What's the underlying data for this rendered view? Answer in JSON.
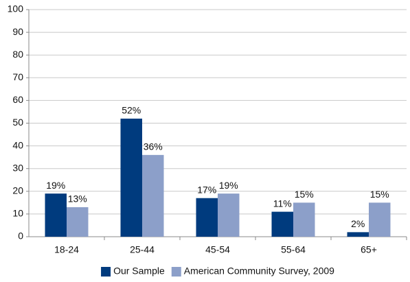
{
  "chart_data": {
    "type": "bar",
    "categories": [
      "18-24",
      "25-44",
      "45-54",
      "55-64",
      "65+"
    ],
    "series": [
      {
        "name": "Our Sample",
        "color": "#003b7e",
        "values": [
          19,
          52,
          17,
          11,
          2
        ],
        "value_labels": [
          "19%",
          "52%",
          "17%",
          "11%",
          "2%"
        ]
      },
      {
        "name": "American Community Survey, 2009",
        "color": "#8c9fc9",
        "values": [
          13,
          36,
          19,
          15,
          15
        ],
        "value_labels": [
          "13%",
          "36%",
          "19%",
          "15%",
          "15%"
        ]
      }
    ],
    "ylim": [
      0,
      100
    ],
    "yticks": [
      0,
      10,
      20,
      30,
      40,
      50,
      60,
      70,
      80,
      90,
      100
    ],
    "grid": true,
    "legend": "bottom"
  }
}
